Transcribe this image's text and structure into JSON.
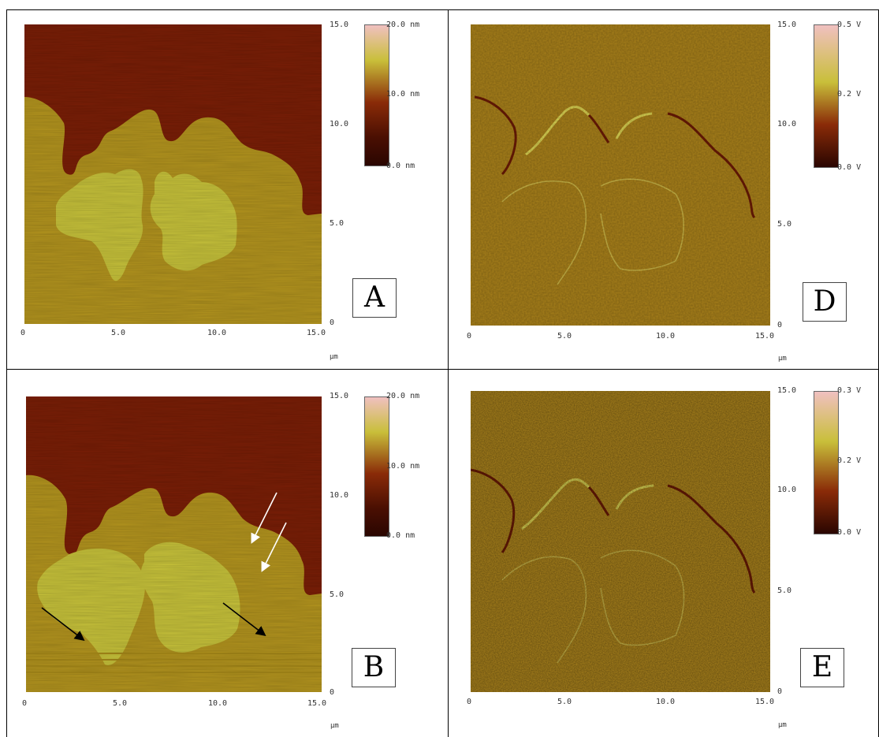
{
  "panels": [
    {
      "id": "A",
      "letter": "A",
      "kind": "height",
      "x_ticks": [
        "0",
        "5.0",
        "10.0",
        "15.0"
      ],
      "y_ticks": [
        "0",
        "5.0",
        "10.0",
        "15.0"
      ],
      "unit": "µm",
      "colorbar": [
        "20.0 nm",
        "10.0 nm",
        "0.0 nm"
      ]
    },
    {
      "id": "D",
      "letter": "D",
      "kind": "amplitude",
      "x_ticks": [
        "0",
        "5.0",
        "10.0",
        "15.0"
      ],
      "y_ticks": [
        "0",
        "5.0",
        "10.0",
        "15.0"
      ],
      "unit": "µm",
      "colorbar": [
        "0.5 V",
        "0.2 V",
        "0.0 V"
      ]
    },
    {
      "id": "B",
      "letter": "B",
      "kind": "height",
      "x_ticks": [
        "0",
        "5.0",
        "10.0",
        "15.0"
      ],
      "y_ticks": [
        "0",
        "5.0",
        "10.0",
        "15.0"
      ],
      "unit": "µm",
      "colorbar": [
        "20.0 nm",
        "10.0 nm",
        "0.0 nm"
      ]
    },
    {
      "id": "E",
      "letter": "E",
      "kind": "amplitude",
      "x_ticks": [
        "0",
        "5.0",
        "10.0",
        "15.0"
      ],
      "y_ticks": [
        "0",
        "5.0",
        "10.0",
        "15.0"
      ],
      "unit": "µm",
      "colorbar": [
        "0.3 V",
        "0.2 V",
        "0.0 V"
      ]
    }
  ],
  "colors": {
    "substrate_dark": "#7a1e06",
    "film_olive": "#b3941e",
    "domain_yellow": "#c7c23a",
    "amplitude_base": "#a8801a"
  }
}
